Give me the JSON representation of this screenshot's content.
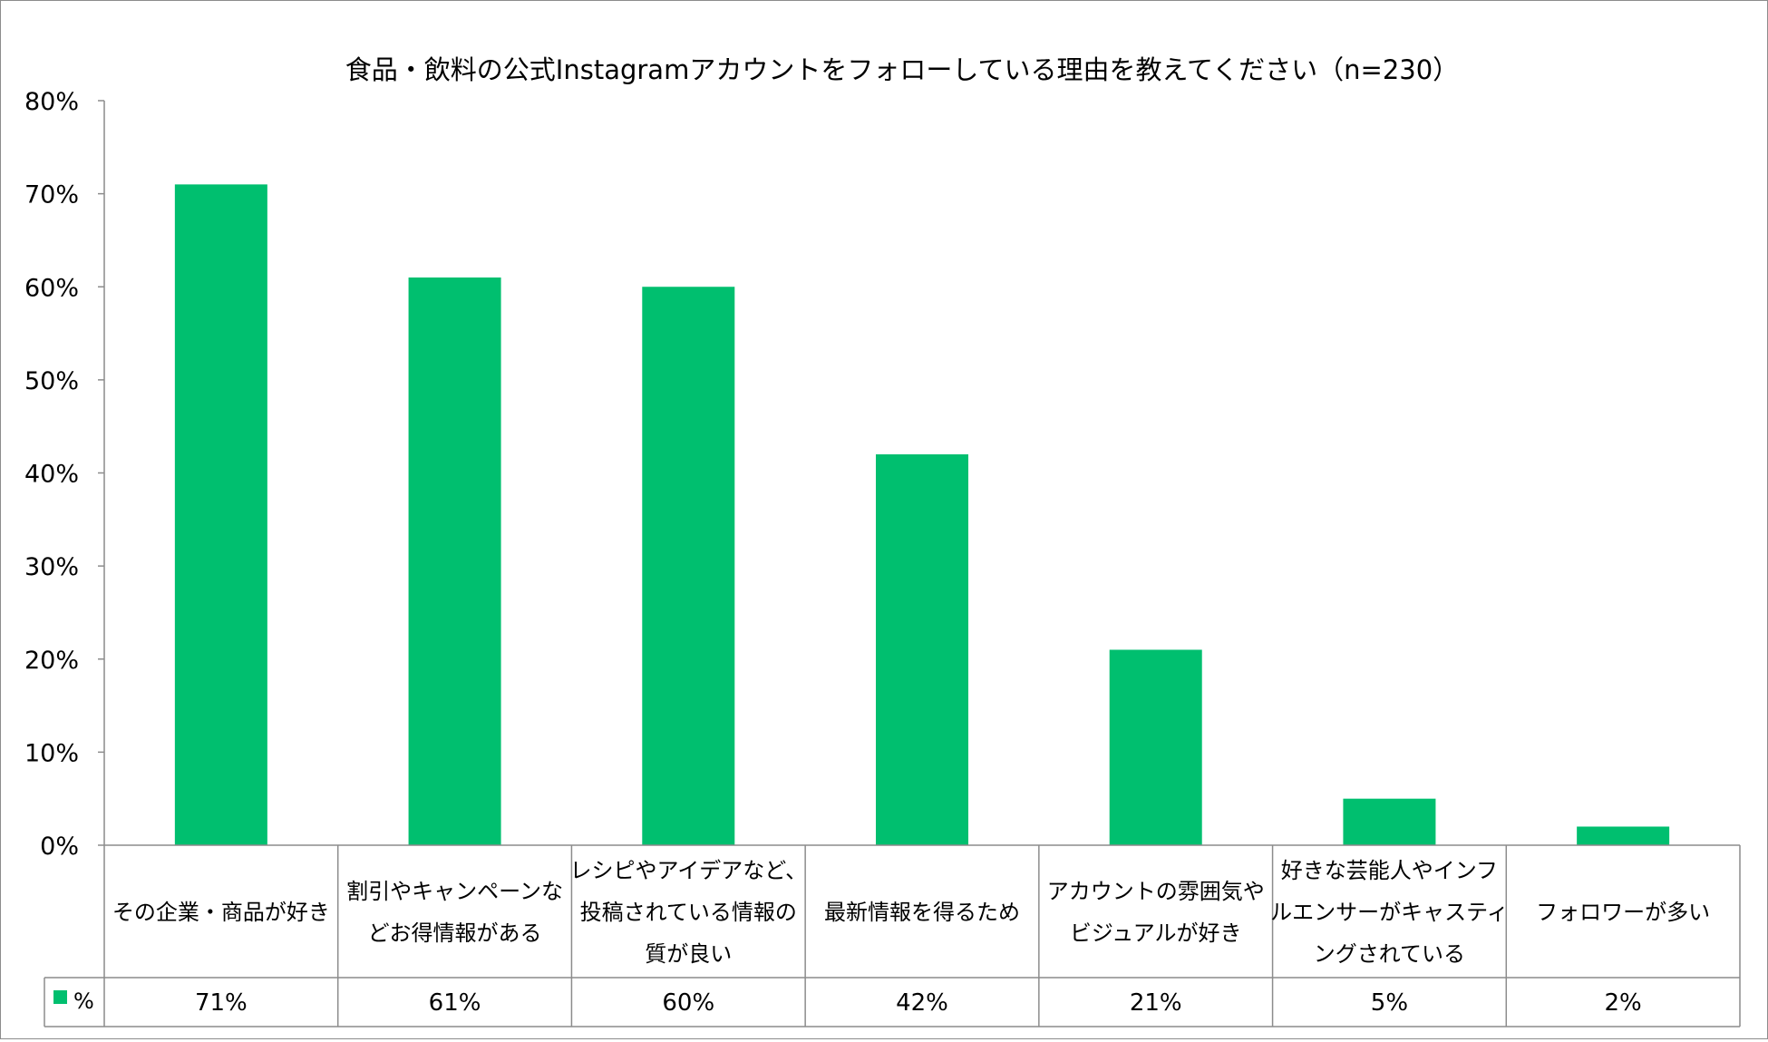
{
  "chart_data": {
    "type": "bar",
    "title": "食品・飲料の公式Instagramアカウントをフォローしている理由を教えてください（n=230）",
    "categories": [
      [
        "その企業・商品が好き"
      ],
      [
        "割引やキャンペーンな",
        "どお得情報がある"
      ],
      [
        "レシピやアイデアなど、",
        "投稿されている情報の",
        "質が良い"
      ],
      [
        "最新情報を得るため"
      ],
      [
        "アカウントの雰囲気や",
        "ビジュアルが好き"
      ],
      [
        "好きな芸能人やインフ",
        "ルエンサーがキャスティ",
        "ングされている"
      ],
      [
        "フォロワーが多い"
      ]
    ],
    "series": [
      {
        "name": "%",
        "values": [
          71,
          61,
          60,
          42,
          21,
          5,
          2
        ],
        "labels": [
          "71%",
          "61%",
          "60%",
          "42%",
          "21%",
          "5%",
          "2%"
        ],
        "color": "#00BF6F"
      }
    ],
    "ylim": [
      0,
      80
    ],
    "yticks": [
      "0%",
      "10%",
      "20%",
      "30%",
      "40%",
      "50%",
      "60%",
      "70%",
      "80%"
    ],
    "xlabel": "",
    "ylabel": "",
    "grid": false,
    "data_table": true
  }
}
